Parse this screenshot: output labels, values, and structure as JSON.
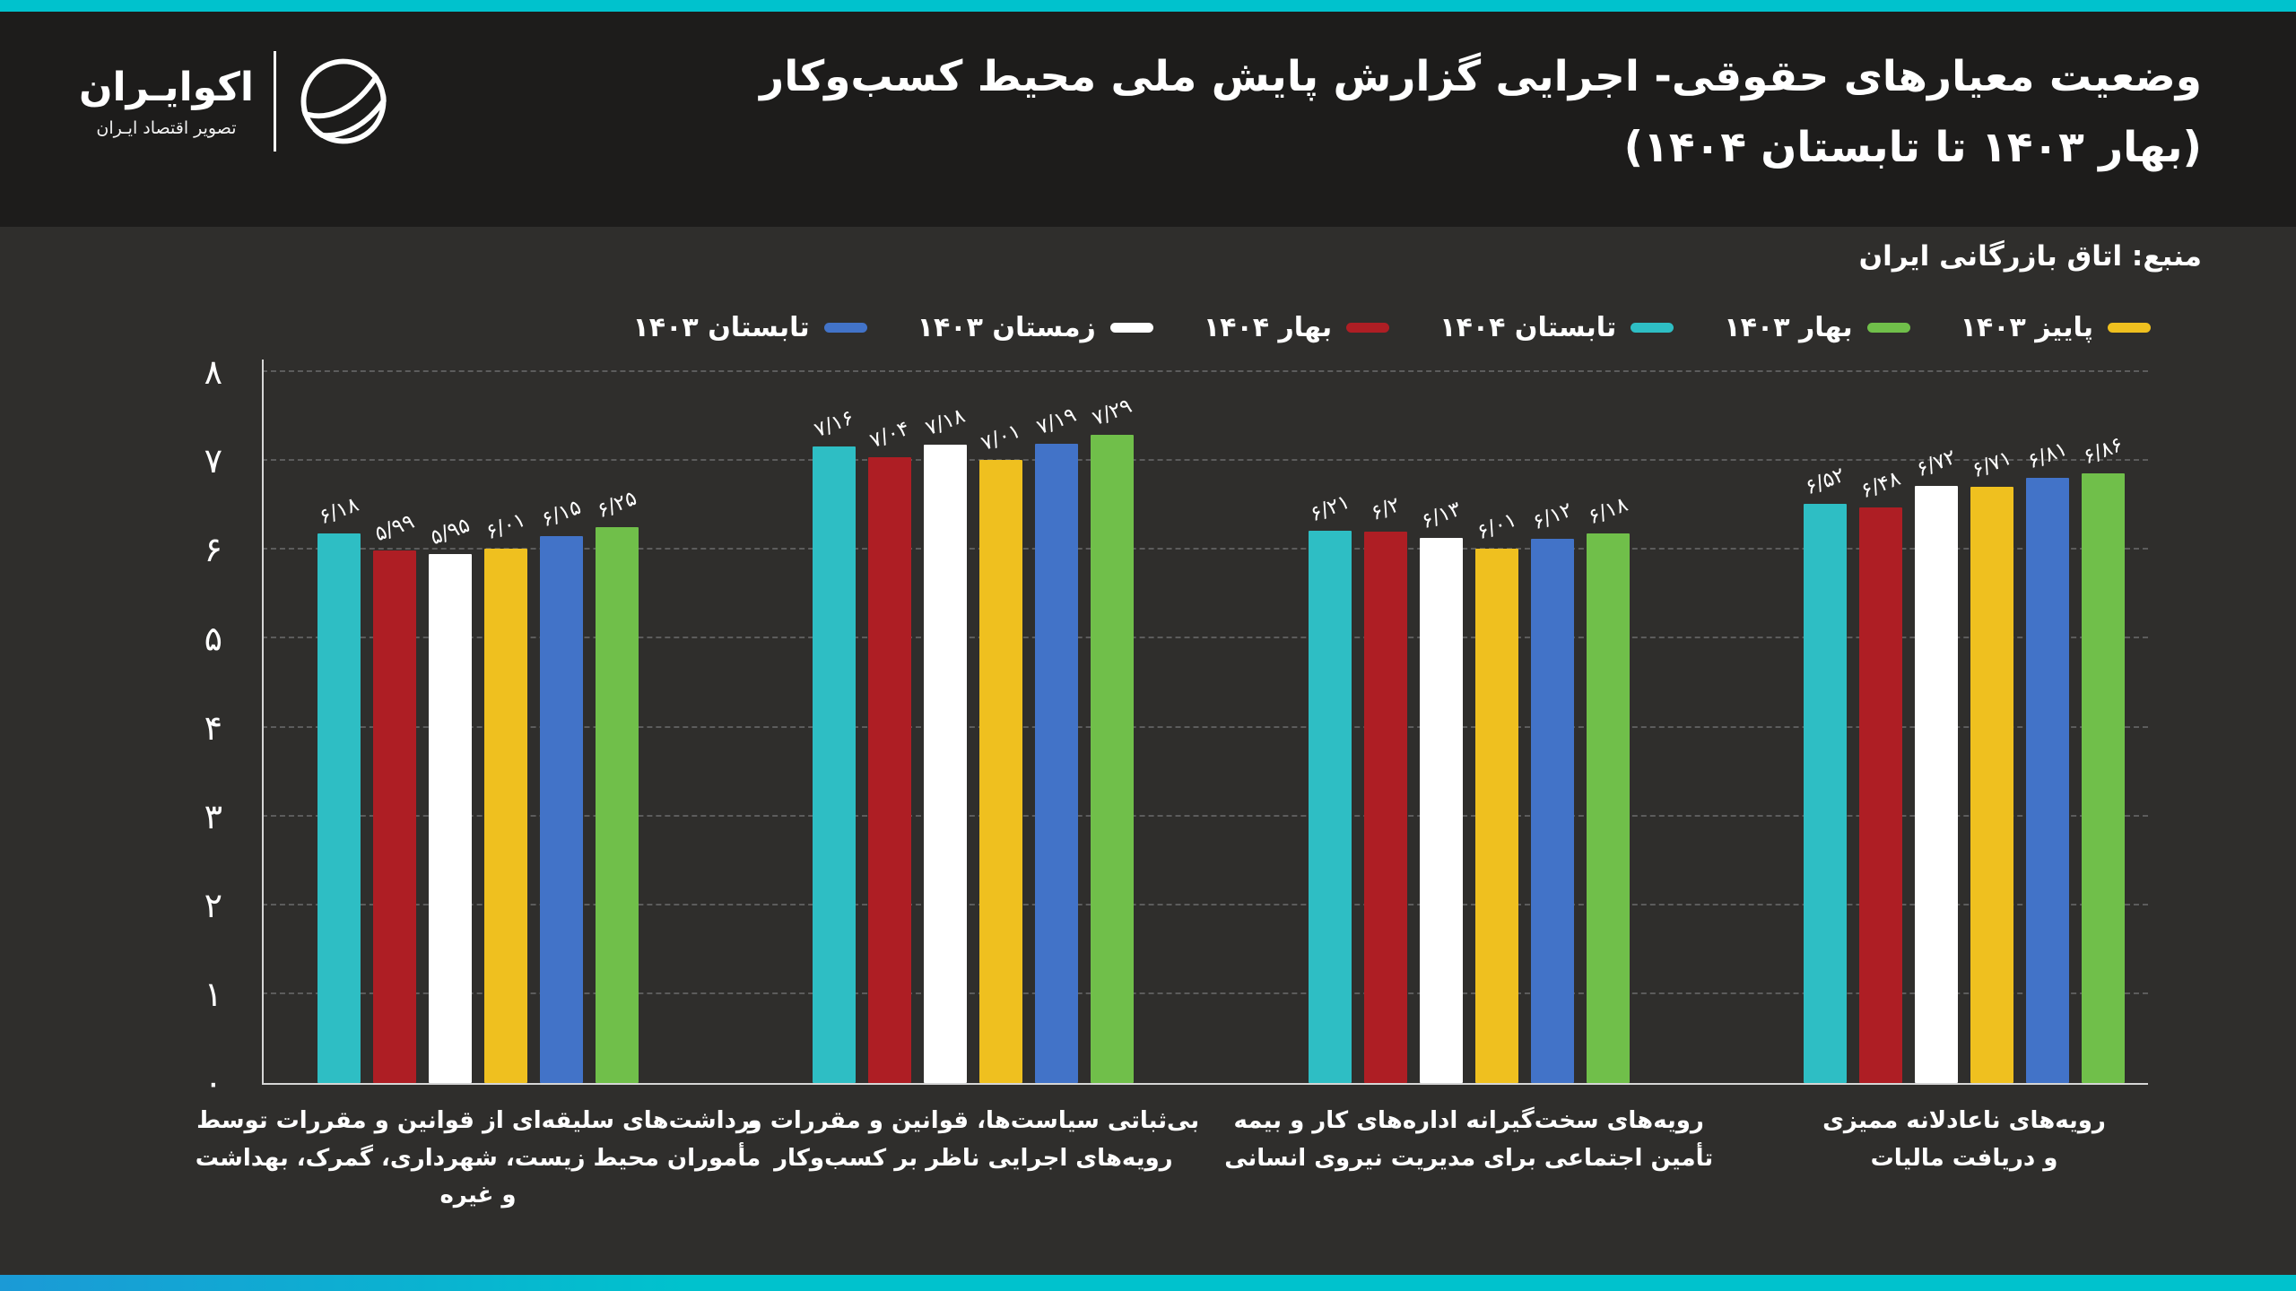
{
  "page": {
    "background": "#2f2e2c",
    "header_background": "#1d1c1b",
    "accent_color": "#00c2cd",
    "grid_color": "#5c5c5c",
    "axis_color": "#d6d6d6"
  },
  "header": {
    "title_line1": "وضعیت معیارهای حقوقی- اجرایی گزارش پایش ملی محیط کسب‌وکار",
    "title_line2": "(بهار ۱۴۰۳ تا تابستان ۱۴۰۴)",
    "logo": {
      "name": "اکوایـران",
      "tagline": "تصویر اقتصاد ایـران",
      "glyph": "ecoiran-globe-icon"
    }
  },
  "source_label": "منبع: اتاق بازرگانی ایران",
  "chart_data": {
    "type": "bar",
    "direction": "rtl",
    "title": "وضعیت معیارهای حقوقی- اجرایی گزارش پایش ملی محیط کسب‌وکار (بهار ۱۴۰۳ تا تابستان ۱۴۰۴)",
    "ylim": [
      0,
      8
    ],
    "y_ticks": [
      "۰",
      "۱",
      "۲",
      "۳",
      "۴",
      "۵",
      "۶",
      "۷",
      "۸"
    ],
    "grid": "horizontal-dashed",
    "legend_position": "top",
    "categories": [
      {
        "lines": [
          "برداشت‌های سلیقه‌ای از قوانین و مقررات توسط",
          "مأموران محیط زیست، شهرداری، گمرک، بهداشت",
          "و غیره"
        ]
      },
      {
        "lines": [
          "بی‌ثباتی سیاست‌ها، قوانین و مقررات و",
          "رویه‌های اجرایی ناظر بر کسب‌وکار"
        ]
      },
      {
        "lines": [
          "رویه‌های سخت‌گیرانه اداره‌های کار و بیمه",
          "تأمین اجتماعی برای مدیریت نیروی انسانی"
        ]
      },
      {
        "lines": [
          "رویه‌های ناعادلانه ممیزی",
          "و دریافت مالیات"
        ]
      }
    ],
    "series": [
      {
        "name": "تابستان ۱۴۰۴",
        "color": "#2ebec4",
        "values": [
          6.18,
          7.16,
          6.21,
          6.52
        ],
        "labels": [
          "۶/۱۸",
          "۷/۱۶",
          "۶/۲۱",
          "۶/۵۲"
        ]
      },
      {
        "name": "بهار ۱۴۰۴",
        "color": "#ae1e24",
        "values": [
          5.99,
          7.04,
          6.2,
          6.48
        ],
        "labels": [
          "۵/۹۹",
          "۷/۰۴",
          "۶/۲",
          "۶/۴۸"
        ]
      },
      {
        "name": "زمستان ۱۴۰۳",
        "color": "#ffffff",
        "values": [
          5.95,
          7.18,
          6.13,
          6.72
        ],
        "labels": [
          "۵/۹۵",
          "۷/۱۸",
          "۶/۱۳",
          "۶/۷۲"
        ]
      },
      {
        "name": "پاییز ۱۴۰۳",
        "color": "#efc01f",
        "values": [
          6.01,
          7.01,
          6.01,
          6.71
        ],
        "labels": [
          "۶/۰۱",
          "۷/۰۱",
          "۶/۰۱",
          "۶/۷۱"
        ]
      },
      {
        "name": "تابستان ۱۴۰۳",
        "color": "#4273c8",
        "values": [
          6.15,
          7.19,
          6.12,
          6.81
        ],
        "labels": [
          "۶/۱۵",
          "۷/۱۹",
          "۶/۱۲",
          "۶/۸۱"
        ]
      },
      {
        "name": "بهار ۱۴۰۳",
        "color": "#70bf4a",
        "values": [
          6.25,
          7.29,
          6.18,
          6.86
        ],
        "labels": [
          "۶/۲۵",
          "۷/۲۹",
          "۶/۱۸",
          "۶/۸۶"
        ]
      }
    ],
    "legend_items_ltr": [
      {
        "label": "تابستان ۱۴۰۳",
        "color": "#4273c8"
      },
      {
        "label": "زمستان ۱۴۰۳",
        "color": "#ffffff"
      },
      {
        "label": "بهار ۱۴۰۴",
        "color": "#ae1e24"
      },
      {
        "label": "تابستان ۱۴۰۴",
        "color": "#2ebec4"
      },
      {
        "label": "بهار ۱۴۰۳",
        "color": "#70bf4a"
      },
      {
        "label": "پاییز ۱۴۰۳",
        "color": "#efc01f"
      }
    ]
  }
}
